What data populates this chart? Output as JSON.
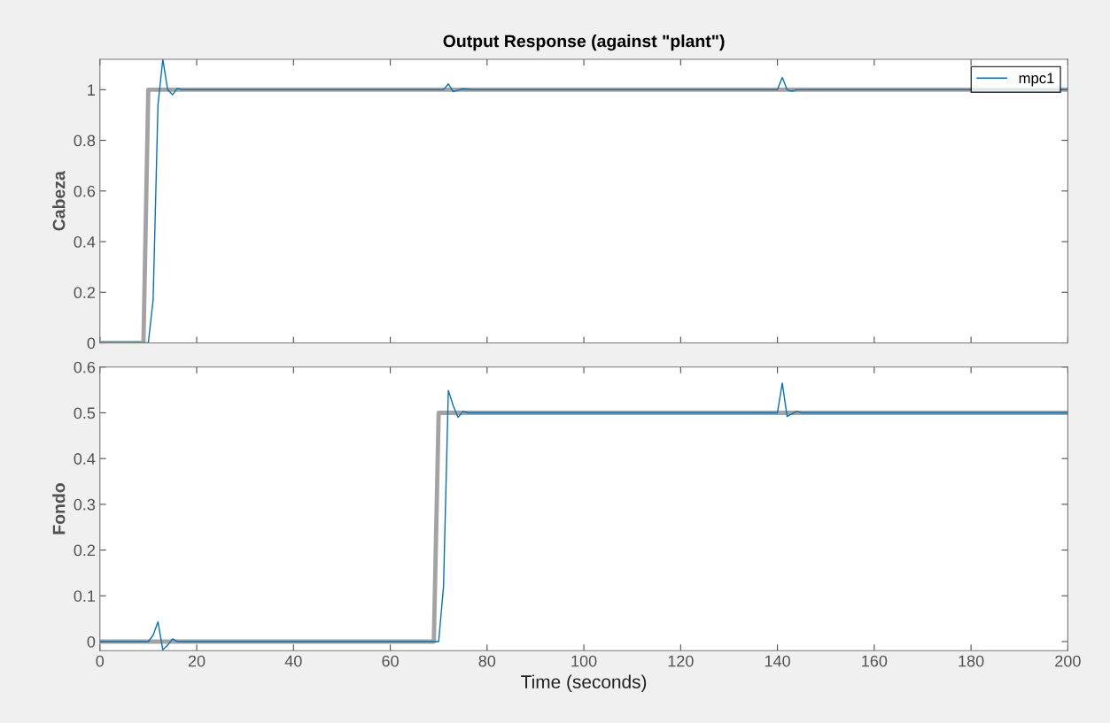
{
  "chart_data": [
    {
      "type": "line",
      "title": "Output Response (against \"plant\")",
      "ylabel": "Cabeza",
      "xlim": [
        0,
        200
      ],
      "xticks": [
        0,
        20,
        40,
        60,
        80,
        100,
        120,
        140,
        160,
        180,
        200
      ],
      "ylim": [
        0,
        1.12
      ],
      "yticks": [
        0,
        0.2,
        0.4,
        0.6,
        0.8,
        1
      ],
      "tick_labels": "y",
      "legend": "top right",
      "grid": false,
      "series": [
        {
          "color": "#999999",
          "x": [
            0,
            9,
            10,
            200
          ],
          "values": [
            0,
            0,
            1,
            1
          ]
        },
        {
          "name": "mpc1",
          "color": "#0072bd",
          "x": [
            0,
            10,
            11,
            12,
            13,
            14,
            15,
            16,
            17,
            18,
            70,
            71,
            72,
            73,
            74,
            75,
            77,
            140,
            141,
            142,
            143,
            144,
            145,
            200
          ],
          "values": [
            0,
            0,
            0.17,
            0.94,
            1.12,
            1.0,
            0.98,
            1.005,
            1.0,
            1.0,
            1.0,
            1.0,
            1.023,
            0.992,
            0.998,
            1.003,
            1.0,
            1.0,
            1.048,
            1.0,
            0.994,
            1.0,
            1.0,
            1.0
          ]
        }
      ]
    },
    {
      "type": "line",
      "ylabel": "Fondo",
      "xlabel": "Time (seconds)",
      "xlim": [
        0,
        200
      ],
      "xticks": [
        0,
        20,
        40,
        60,
        80,
        100,
        120,
        140,
        160,
        180,
        200
      ],
      "ylim": [
        -0.02,
        0.6
      ],
      "yticks": [
        0,
        0.1,
        0.2,
        0.3,
        0.4,
        0.5,
        0.6
      ],
      "grid": false,
      "series": [
        {
          "color": "#999999",
          "x": [
            0,
            69,
            70,
            200
          ],
          "values": [
            0,
            0,
            0.5,
            0.5
          ]
        },
        {
          "color": "#0072bd",
          "x": [
            0,
            10,
            11,
            12,
            13,
            14,
            15,
            16,
            17,
            70,
            71,
            72,
            73,
            74,
            75,
            76,
            140,
            141,
            142,
            143,
            144,
            145,
            200
          ],
          "values": [
            0,
            0,
            0.014,
            0.043,
            -0.018,
            -0.008,
            0.006,
            0,
            0,
            0,
            0.12,
            0.549,
            0.516,
            0.49,
            0.503,
            0.5,
            0.5,
            0.565,
            0.492,
            0.498,
            0.503,
            0.5,
            0.5
          ]
        }
      ]
    }
  ]
}
